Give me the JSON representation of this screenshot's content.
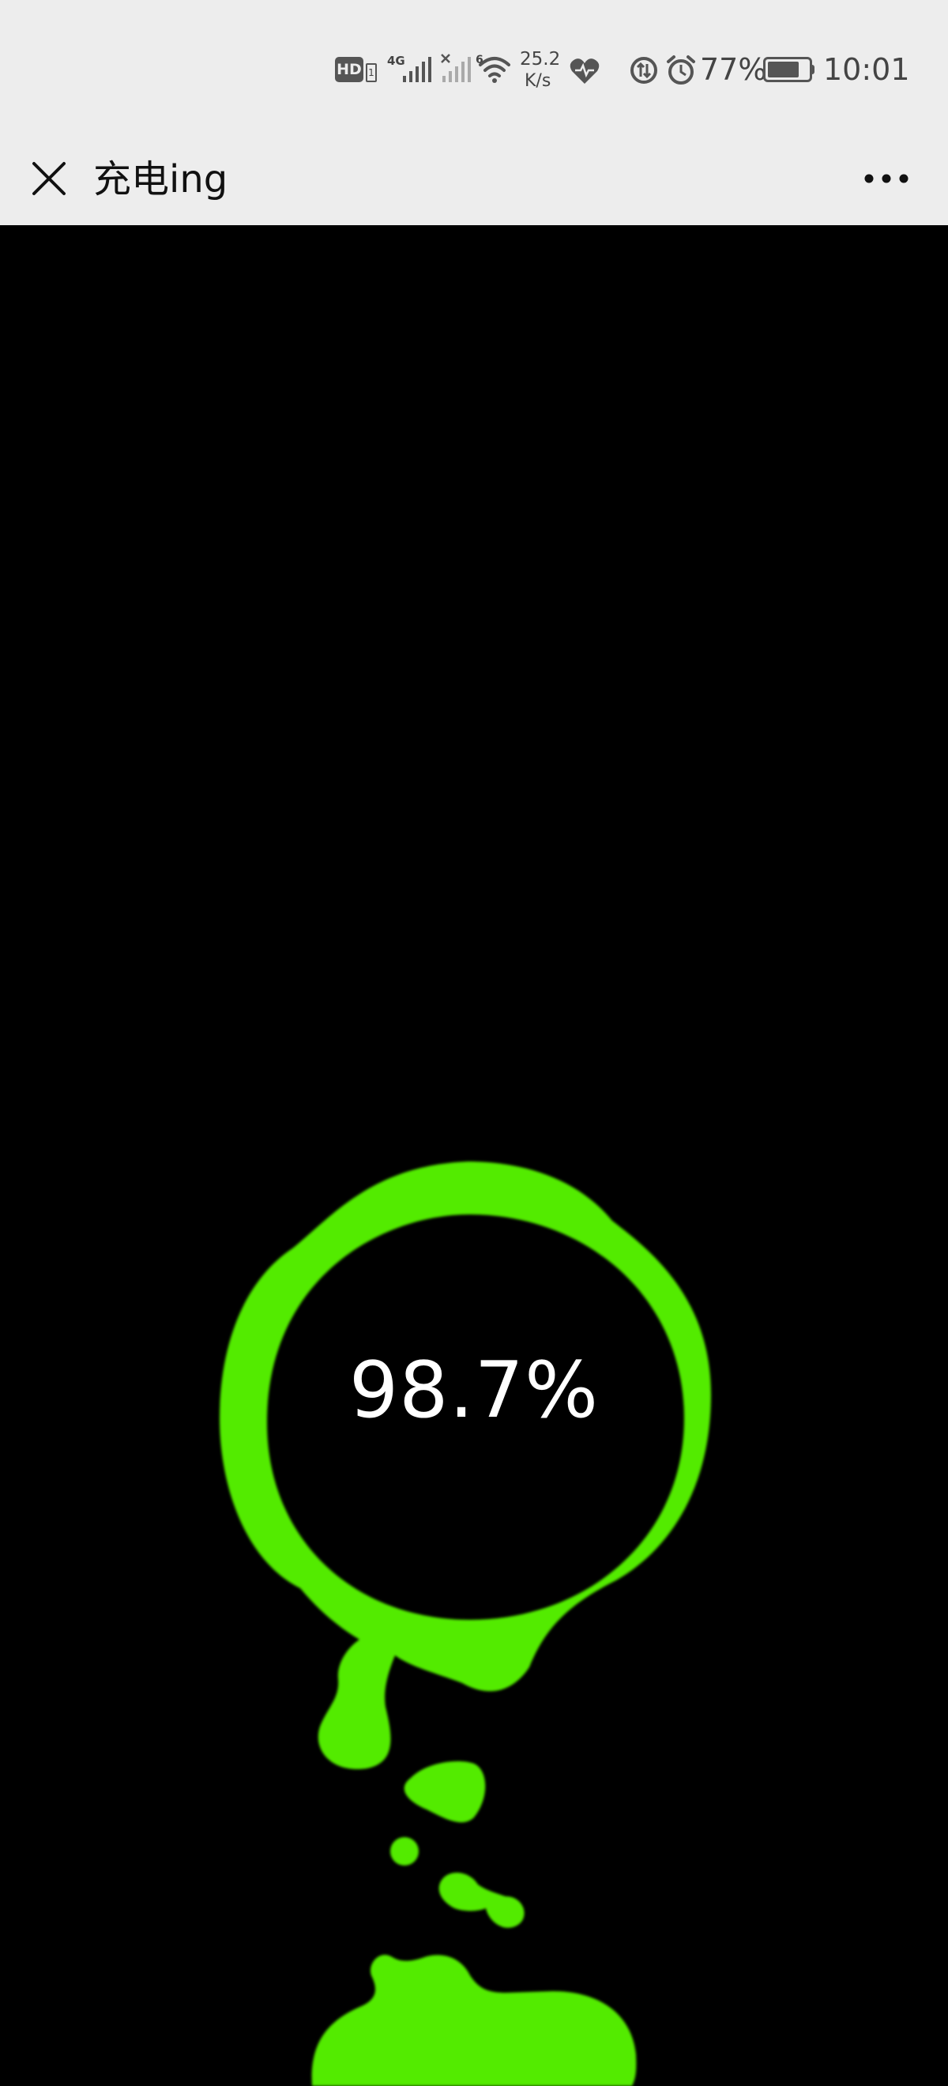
{
  "status_bar": {
    "hd_label": "HD",
    "sim_label": "1",
    "network_label": "4G",
    "sim2_label": "6",
    "speed_value": "25.2",
    "speed_unit": "K/s",
    "battery_percent": "77%",
    "battery_level": 0.77,
    "time": "10:01"
  },
  "nav": {
    "title": "充电ing"
  },
  "charging": {
    "percent_text": "98.7%",
    "accent_color": "#52eb00"
  }
}
